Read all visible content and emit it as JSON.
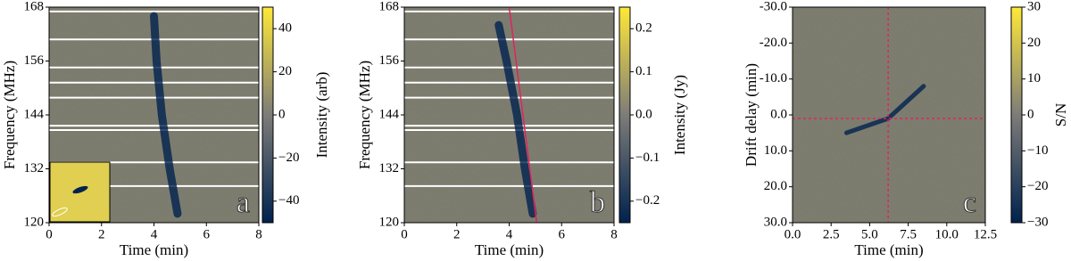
{
  "chart_data": [
    {
      "type": "heatmap",
      "xlabel": "Time (min)",
      "ylabel": "Frequency (MHz)",
      "panel_label": "a",
      "xlim": [
        0,
        8
      ],
      "xticks": [
        0,
        2,
        4,
        6,
        8
      ],
      "ylim": [
        120,
        168
      ],
      "yticks": [
        120,
        132,
        144,
        156,
        168
      ],
      "colormap": [
        "#00224e",
        "#7d7c78",
        "#fee838"
      ],
      "pulse": {
        "x": [
          4.0,
          4.1,
          4.3,
          4.6,
          4.9
        ],
        "y": [
          166,
          156,
          144,
          132,
          122
        ]
      },
      "colorbar": {
        "label": "Intensity (arb)",
        "lim": [
          -50,
          50
        ],
        "ticks": [
          40,
          20,
          {
            "value": 0,
            "label": "0"
          },
          {
            "value": -20,
            "label": "−20"
          },
          {
            "value": -40,
            "label": "−40"
          }
        ]
      }
    },
    {
      "type": "heatmap",
      "xlabel": "Time (min)",
      "ylabel": "Frequency (MHz)",
      "panel_label": "b",
      "xlim": [
        0,
        8
      ],
      "xticks": [
        0,
        2,
        4,
        6,
        8
      ],
      "ylim": [
        120,
        168
      ],
      "yticks": [
        120,
        132,
        144,
        156,
        168
      ],
      "colormap": [
        "#00224e",
        "#7d7c78",
        "#fee838"
      ],
      "pulse": {
        "x": [
          3.6,
          3.9,
          4.3,
          4.6,
          4.9
        ],
        "y": [
          164,
          156,
          144,
          132,
          122
        ]
      },
      "fit_line": {
        "x": [
          4.0,
          5.05
        ],
        "y": [
          168,
          120
        ],
        "color": "#e0245e"
      },
      "colorbar": {
        "label": "Intensity (Jy)",
        "lim": [
          -0.25,
          0.25
        ],
        "ticks": [
          0.2,
          0.1,
          {
            "value": 0,
            "label": "0.0"
          },
          {
            "value": -0.1,
            "label": "−0.1"
          },
          {
            "value": -0.2,
            "label": "−0.2"
          }
        ]
      }
    },
    {
      "type": "heatmap",
      "xlabel": "Time (min)",
      "ylabel": "Drift delay (min)",
      "panel_label": "c",
      "xlim": [
        0,
        12.5
      ],
      "xticks": [
        {
          "value": 0,
          "label": "0.0"
        },
        {
          "value": 2.5,
          "label": "2.5"
        },
        {
          "value": 5,
          "label": "5.0"
        },
        {
          "value": 7.5,
          "label": "7.5"
        },
        {
          "value": 10,
          "label": "10.0"
        },
        {
          "value": 12.5,
          "label": "12.5"
        }
      ],
      "ylim": [
        30,
        -30
      ],
      "yticks": [
        {
          "value": -30,
          "label": "-30.0"
        },
        {
          "value": -20,
          "label": "-20.0"
        },
        {
          "value": -10,
          "label": "-10.0"
        },
        {
          "value": 0,
          "label": "0.0"
        },
        {
          "value": 10,
          "label": "10.0"
        },
        {
          "value": 20,
          "label": "20.0"
        },
        {
          "value": 30,
          "label": "30.0"
        }
      ],
      "colormap": [
        "#00224e",
        "#7d7c78",
        "#fee838"
      ],
      "pulse": {
        "x": [
          3.5,
          6.2,
          8.5
        ],
        "y": [
          5,
          1,
          -8
        ]
      },
      "crosshair": {
        "x": 6.2,
        "y": 1.0,
        "color": "#e0245e"
      },
      "colorbar": {
        "label": "S/N",
        "lim": [
          -30,
          30
        ],
        "ticks": [
          30,
          20,
          10,
          {
            "value": 0,
            "label": "0"
          },
          {
            "value": -10,
            "label": "−10"
          },
          {
            "value": -20,
            "label": "−20"
          },
          {
            "value": -30,
            "label": "−30"
          }
        ]
      }
    }
  ]
}
